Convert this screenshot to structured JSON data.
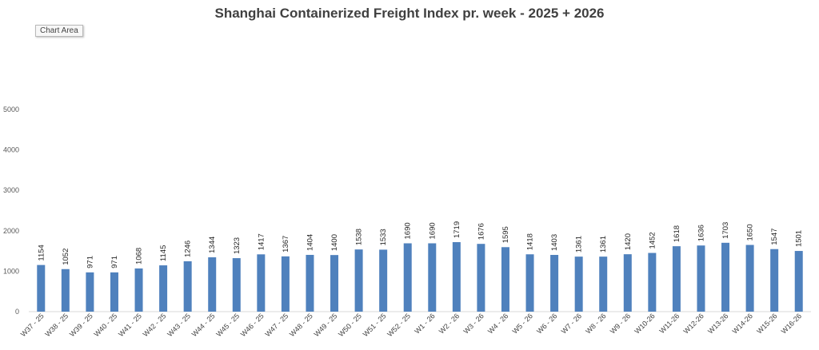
{
  "chart_data": {
    "type": "bar",
    "title": "Shanghai Containerized Freight Index pr. week - 2025 + 2026",
    "xlabel": "",
    "ylabel": "",
    "ylim": [
      0,
      5000
    ],
    "yticks": [
      0,
      1000,
      2000,
      3000,
      4000,
      5000
    ],
    "grid": false,
    "bar_color": "#4f81bd",
    "categories": [
      "W37 - 25",
      "W38 - 25",
      "W39 - 25",
      "W40 - 25",
      "W41 - 25",
      "W42 - 25",
      "W43 - 25",
      "W44 - 25",
      "W45 - 25",
      "W46 - 25",
      "W47 - 25",
      "W48 - 25",
      "W49 - 25",
      "W50 - 25",
      "W51 - 25",
      "W52 - 25",
      "W1 - 26",
      "W2 - 26",
      "W3 - 26",
      "W4 - 26",
      "W5 - 26",
      "W6 - 26",
      "W7 - 26",
      "W8 - 26",
      "W9 - 26",
      "W10-26",
      "W11-26",
      "W12-26",
      "W13-26",
      "W14-26",
      "W15-26",
      "W16-26"
    ],
    "values": [
      1154,
      1052,
      971,
      971,
      1068,
      1145,
      1246,
      1344,
      1323,
      1417,
      1367,
      1404,
      1400,
      1538,
      1533,
      1690,
      1690,
      1719,
      1676,
      1595,
      1418,
      1403,
      1361,
      1361,
      1420,
      1452,
      1618,
      1636,
      1703,
      1650,
      1547,
      1501
    ]
  },
  "ui": {
    "chart_area_label": "Chart Area"
  }
}
